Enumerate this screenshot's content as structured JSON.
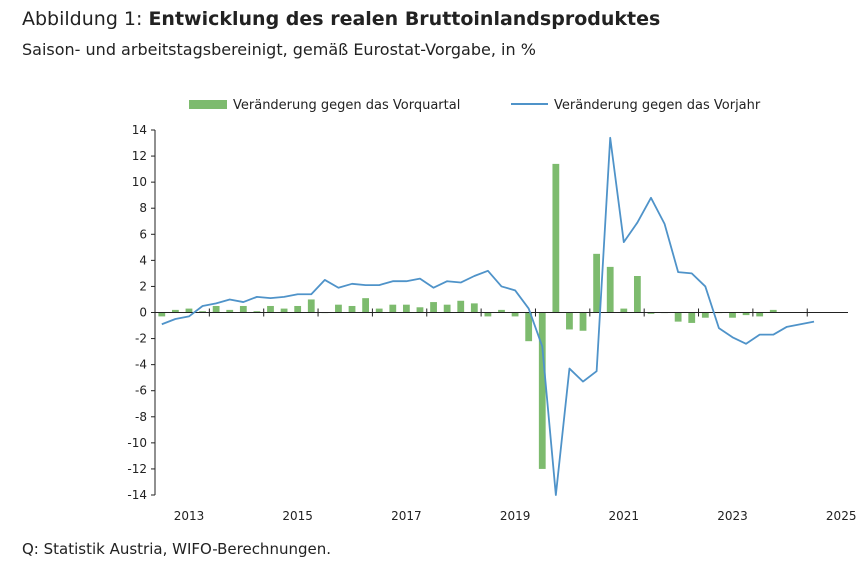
{
  "header": {
    "title_prefix": "Abbildung 1: ",
    "title_main": "Entwicklung des realen Bruttoinlandsproduktes",
    "subtitle": "Saison- und arbeitstagsbereinigt, gemäß Eurostat-Vorgabe, in %"
  },
  "footer": {
    "source": "Q: Statistik Austria, WIFO-Berechnungen."
  },
  "colors": {
    "bars": "#7dbb6e",
    "line": "#4f93c9",
    "axis": "#222222"
  },
  "chart_data": {
    "type": "bar",
    "title": "Entwicklung des realen Bruttoinlandsproduktes",
    "subtitle": "Saison- und arbeitstagsbereinigt, gemäß Eurostat-Vorgabe, in %",
    "xlabel": "",
    "ylabel": "",
    "ylim": [
      -14,
      14
    ],
    "yticks": [
      "14",
      "12",
      "10",
      "8",
      "6",
      "4",
      "2",
      "0",
      "-2",
      "-4",
      "-6",
      "-8",
      "-10",
      "-12",
      "-14"
    ],
    "xtick_labels": [
      "2013",
      "2015",
      "2017",
      "2019",
      "2021",
      "2023",
      "2025"
    ],
    "quarters": [
      "2012Q3",
      "2012Q4",
      "2013Q1",
      "2013Q2",
      "2013Q3",
      "2013Q4",
      "2014Q1",
      "2014Q2",
      "2014Q3",
      "2014Q4",
      "2015Q1",
      "2015Q2",
      "2015Q3",
      "2015Q4",
      "2016Q1",
      "2016Q2",
      "2016Q3",
      "2016Q4",
      "2017Q1",
      "2017Q2",
      "2017Q3",
      "2017Q4",
      "2018Q1",
      "2018Q2",
      "2018Q3",
      "2018Q4",
      "2019Q1",
      "2019Q2",
      "2019Q3",
      "2019Q4",
      "2020Q1",
      "2020Q2",
      "2020Q3",
      "2020Q4",
      "2021Q1",
      "2021Q2",
      "2021Q3",
      "2021Q4",
      "2022Q1",
      "2022Q2",
      "2022Q3",
      "2022Q4",
      "2023Q1",
      "2023Q2",
      "2023Q3",
      "2023Q4",
      "2024Q1",
      "2024Q2",
      "2024Q3",
      "2024Q4",
      "2025Q1"
    ],
    "legend_position": "top",
    "grid": false,
    "series": [
      {
        "name": "Veränderung gegen das Vorquartal",
        "type": "bar",
        "values": [
          -0.3,
          0.2,
          0.3,
          0.1,
          0.5,
          0.2,
          0.5,
          0.1,
          0.5,
          0.3,
          0.5,
          1.0,
          0.0,
          0.6,
          0.5,
          1.1,
          0.3,
          0.6,
          0.6,
          0.4,
          0.8,
          0.6,
          0.9,
          0.7,
          -0.3,
          0.2,
          -0.3,
          -2.2,
          -12.0,
          11.4,
          -1.3,
          -1.4,
          4.5,
          3.5,
          0.3,
          2.8,
          -0.1,
          0.0,
          -0.7,
          -0.8,
          -0.4,
          0.0,
          -0.4,
          -0.2,
          -0.3,
          0.2,
          null,
          null,
          null,
          null,
          null
        ]
      },
      {
        "name": "Veränderung gegen das Vorjahr",
        "type": "line",
        "values": [
          -0.9,
          -0.5,
          -0.3,
          0.5,
          0.7,
          1.0,
          0.8,
          1.2,
          1.1,
          1.2,
          1.4,
          1.4,
          2.5,
          1.9,
          2.2,
          2.1,
          2.1,
          2.4,
          2.4,
          2.6,
          1.9,
          2.4,
          2.3,
          2.8,
          3.2,
          2.0,
          1.7,
          0.3,
          -2.6,
          -14.0,
          -4.3,
          -5.3,
          -4.5,
          13.4,
          5.4,
          6.9,
          8.8,
          6.8,
          3.1,
          3.0,
          2.0,
          -1.2,
          -1.9,
          -2.4,
          -1.7,
          -1.7,
          -1.1,
          -0.9,
          -0.7,
          null,
          null
        ]
      }
    ]
  }
}
